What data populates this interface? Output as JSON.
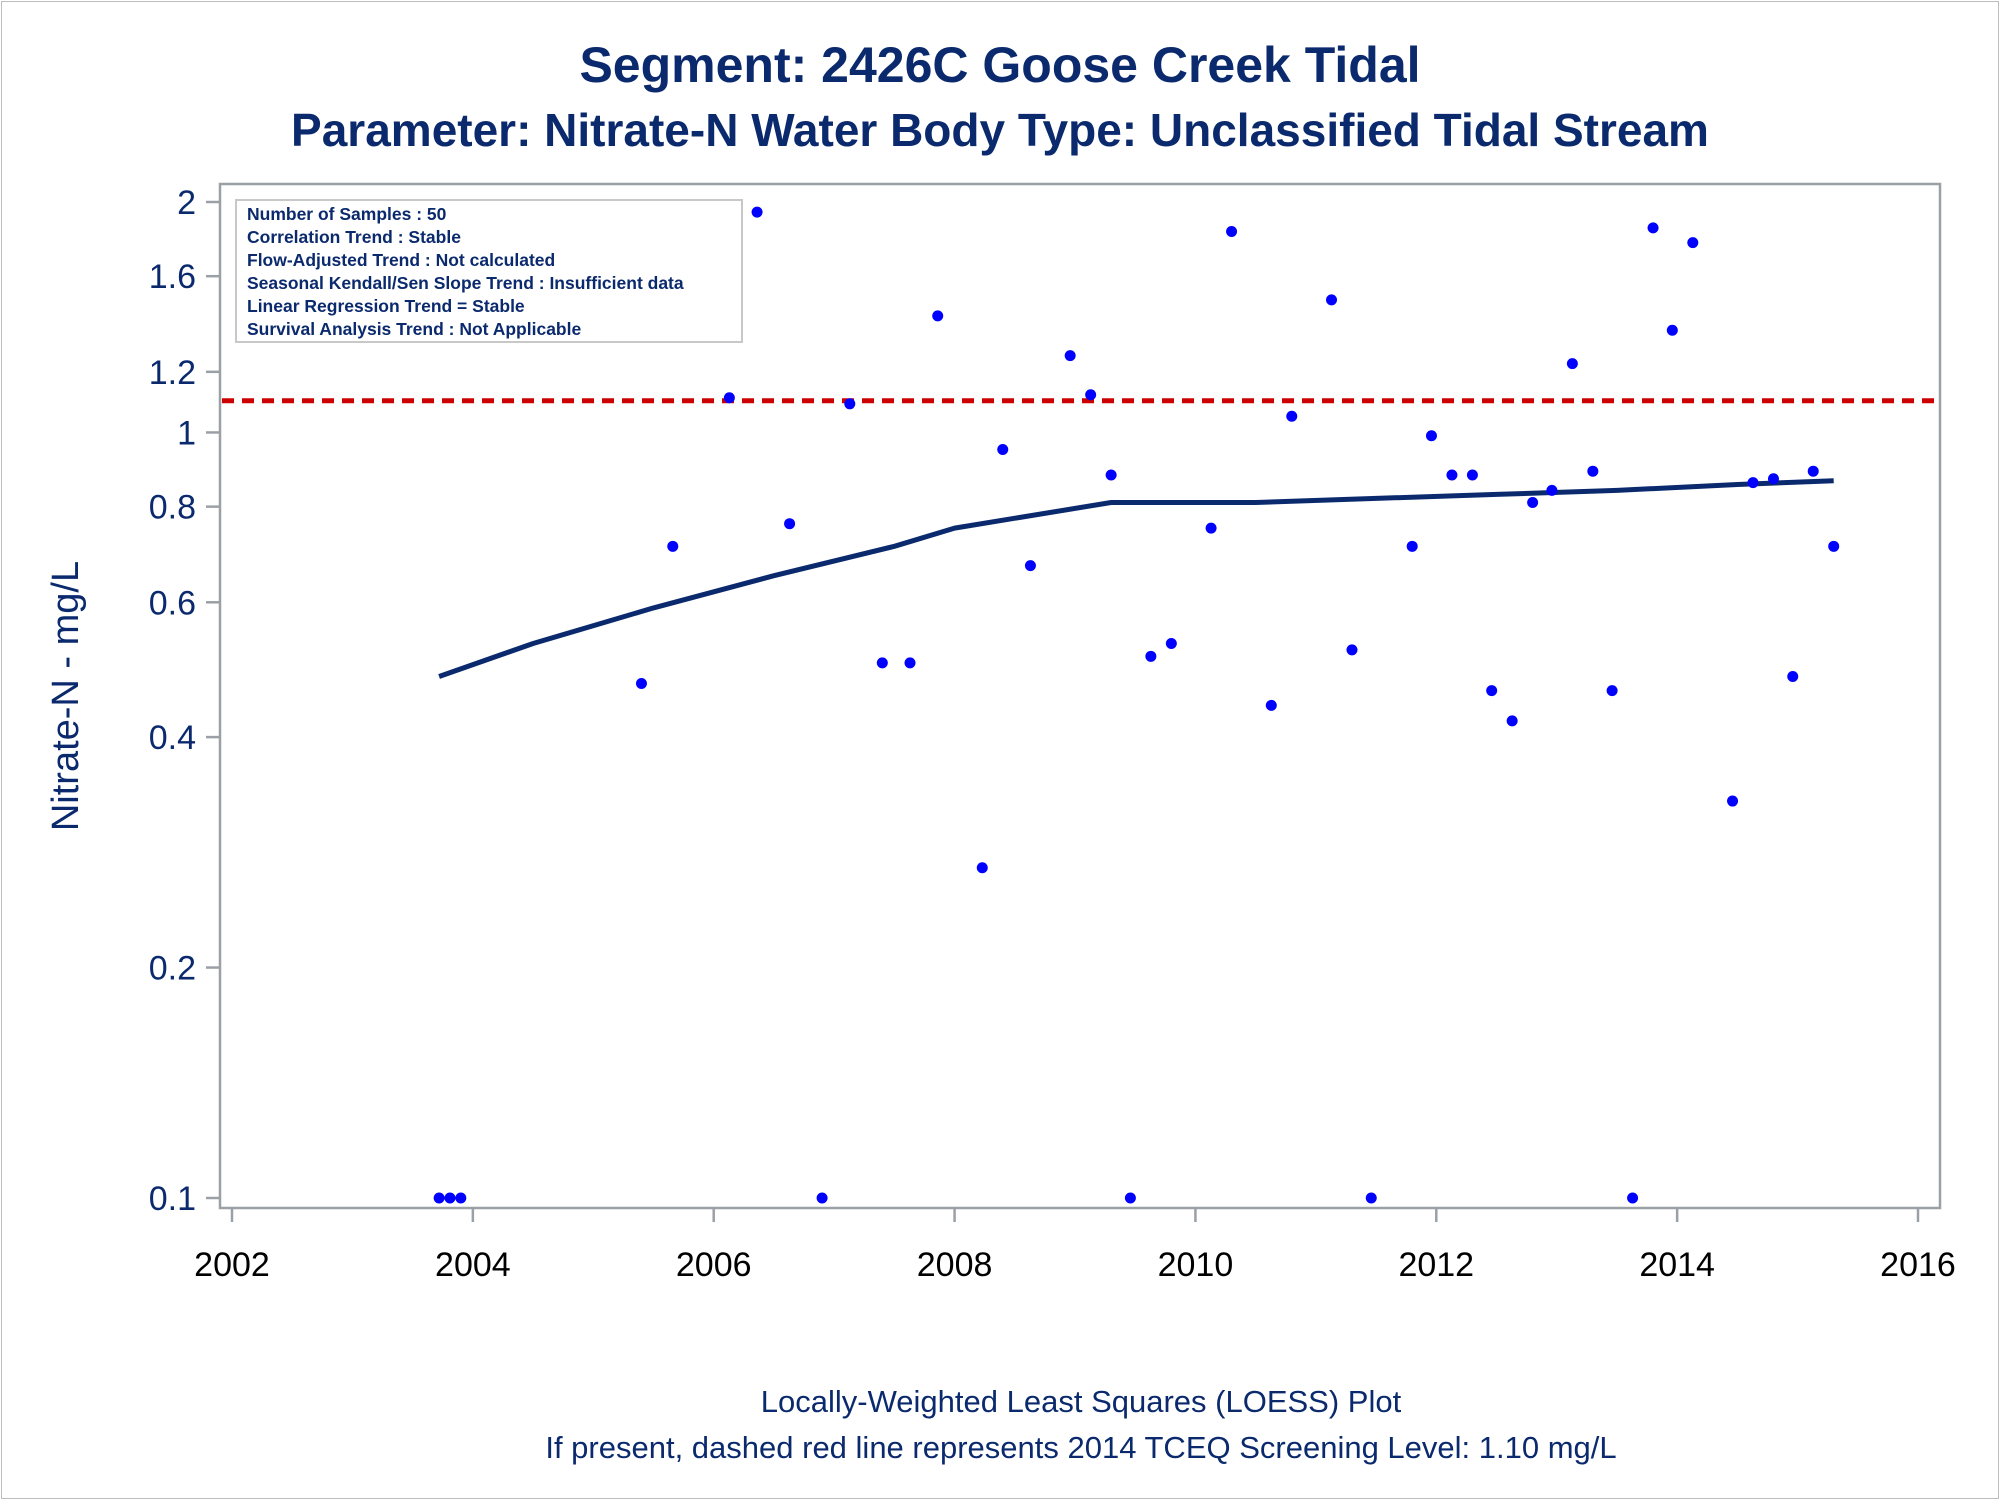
{
  "chart_data": {
    "type": "scatter",
    "title": "Segment: 2426C  Goose Creek Tidal",
    "subtitle": "Parameter: Nitrate-N   Water Body Type: Unclassified Tidal Stream",
    "xlabel": "",
    "ylabel": "Nitrate-N - mg/L",
    "xlim": [
      2002,
      2016
    ],
    "ylim": [
      0.1,
      2
    ],
    "y_scale": "log",
    "x_ticks": [
      "2002",
      "2004",
      "2006",
      "2008",
      "2010",
      "2012",
      "2014",
      "2016"
    ],
    "y_ticks": [
      "0.1",
      "0.2",
      "0.4",
      "0.6",
      "0.8",
      "1",
      "1.2",
      "1.6",
      "2"
    ],
    "grid": false,
    "legend_placement": "top-left",
    "info_box": [
      "Number of Samples : 50",
      "Correlation Trend : Stable",
      "Flow-Adjusted Trend : Not calculated",
      "Seasonal Kendall/Sen Slope Trend : Insufficient data",
      "Linear Regression Trend = Stable",
      "Survival Analysis Trend : Not Applicable"
    ],
    "footnotes": [
      "Locally-Weighted Least Squares (LOESS) Plot",
      "If present, dashed red line represents 2014 TCEQ Screening Level: 1.10 mg/L"
    ],
    "screening_level": 1.1,
    "series": [
      {
        "type": "scatter",
        "points": [
          [
            2003.72,
            0.1
          ],
          [
            2003.81,
            0.1
          ],
          [
            2003.9,
            0.1
          ],
          [
            2005.4,
            0.47
          ],
          [
            2005.66,
            0.71
          ],
          [
            2006.13,
            1.11
          ],
          [
            2006.36,
            1.94
          ],
          [
            2006.63,
            0.76
          ],
          [
            2006.9,
            0.1
          ],
          [
            2007.13,
            1.09
          ],
          [
            2007.4,
            0.5
          ],
          [
            2007.63,
            0.5
          ],
          [
            2007.86,
            1.42
          ],
          [
            2008.23,
            0.27
          ],
          [
            2008.4,
            0.95
          ],
          [
            2008.63,
            0.67
          ],
          [
            2008.96,
            1.26
          ],
          [
            2009.13,
            1.12
          ],
          [
            2009.3,
            0.88
          ],
          [
            2009.46,
            0.1
          ],
          [
            2009.63,
            0.51
          ],
          [
            2009.8,
            0.53
          ],
          [
            2010.13,
            0.75
          ],
          [
            2010.3,
            1.83
          ],
          [
            2010.63,
            0.44
          ],
          [
            2010.8,
            1.05
          ],
          [
            2011.13,
            1.49
          ],
          [
            2011.3,
            0.52
          ],
          [
            2011.46,
            0.1
          ],
          [
            2011.8,
            0.71
          ],
          [
            2011.96,
            0.99
          ],
          [
            2012.13,
            0.88
          ],
          [
            2012.3,
            0.88
          ],
          [
            2012.46,
            0.46
          ],
          [
            2012.63,
            0.42
          ],
          [
            2012.8,
            0.81
          ],
          [
            2012.96,
            0.84
          ],
          [
            2013.13,
            1.23
          ],
          [
            2013.3,
            0.89
          ],
          [
            2013.46,
            0.46
          ],
          [
            2013.63,
            0.1
          ],
          [
            2013.8,
            1.85
          ],
          [
            2013.96,
            1.36
          ],
          [
            2014.13,
            1.77
          ],
          [
            2014.46,
            0.33
          ],
          [
            2014.63,
            0.86
          ],
          [
            2014.8,
            0.87
          ],
          [
            2014.96,
            0.48
          ],
          [
            2015.13,
            0.89
          ],
          [
            2015.3,
            0.71
          ]
        ]
      },
      {
        "type": "line",
        "points": [
          [
            2003.72,
            0.48
          ],
          [
            2004.5,
            0.53
          ],
          [
            2005.5,
            0.59
          ],
          [
            2006.5,
            0.65
          ],
          [
            2007.5,
            0.71
          ],
          [
            2008.0,
            0.75
          ],
          [
            2009.3,
            0.81
          ],
          [
            2010.5,
            0.81
          ],
          [
            2011.5,
            0.82
          ],
          [
            2012.5,
            0.83
          ],
          [
            2013.5,
            0.84
          ],
          [
            2014.5,
            0.855
          ],
          [
            2015.3,
            0.865
          ]
        ]
      }
    ],
    "colors": {
      "points": "#0000ff",
      "loess_line": "#0b2a6e",
      "screening_line": "#cc0000",
      "text": "#0b2a6e",
      "axis": "#9aa0a6"
    }
  }
}
